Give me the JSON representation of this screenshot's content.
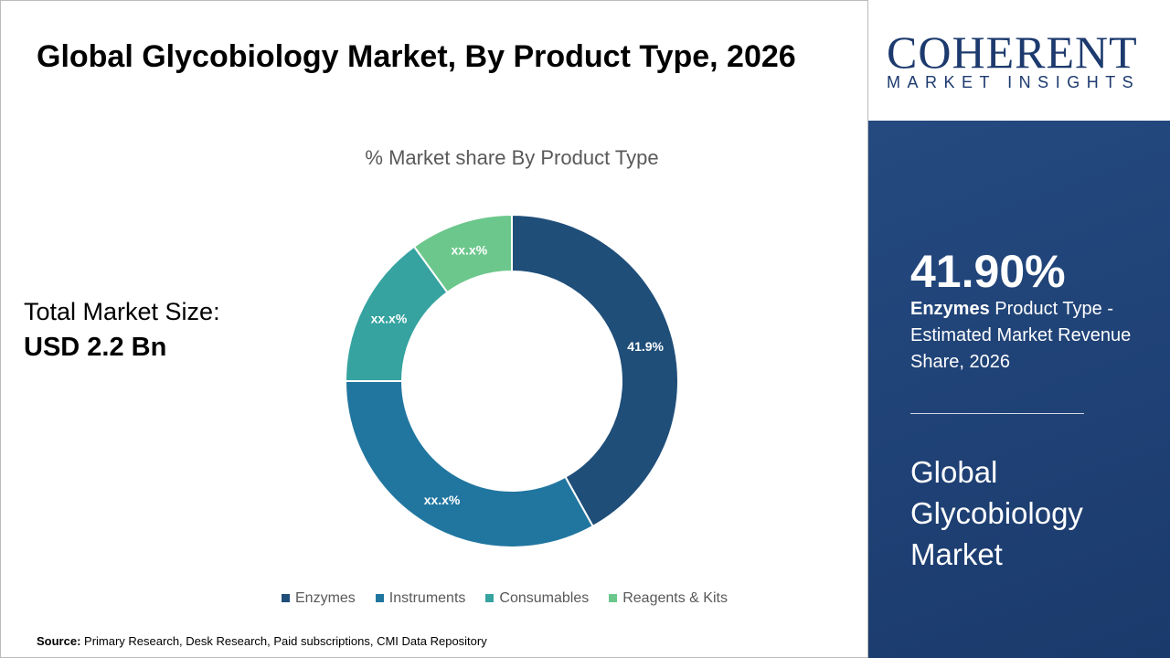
{
  "header": {
    "title": "Global Glycobiology Market, By Product Type, 2026"
  },
  "total": {
    "label": "Total Market Size:",
    "value": "USD 2.2 Bn"
  },
  "source": {
    "label": "Source:",
    "text": " Primary Research, Desk Research, Paid subscriptions, CMI Data Repository"
  },
  "logo": {
    "line1": "COHERENT",
    "line2": "MARKET INSIGHTS"
  },
  "highlight": {
    "value": "41.90%",
    "segment": "Enzymes",
    "desc": " Product Type - Estimated Market Revenue Share, 2026",
    "market": "Global Glycobiology Market"
  },
  "colors": {
    "panel": "#1e4277",
    "enzymes": "#1f4e79",
    "instruments": "#2176a0",
    "consumables": "#36a3a0",
    "reagents": "#6cc78c"
  },
  "chart_data": {
    "type": "pie",
    "donut": true,
    "title": "% Market share By Product Type",
    "categories": [
      "Enzymes",
      "Instruments",
      "Consumables",
      "Reagents & Kits"
    ],
    "values": [
      41.9,
      33.1,
      15,
      10
    ],
    "data_labels": [
      "41.9%",
      "xx.x%",
      "xx.x%",
      "xx.x%"
    ],
    "colors": [
      "#1f4e79",
      "#2176a0",
      "#36a3a0",
      "#6cc78c"
    ],
    "legend": "bottom"
  }
}
